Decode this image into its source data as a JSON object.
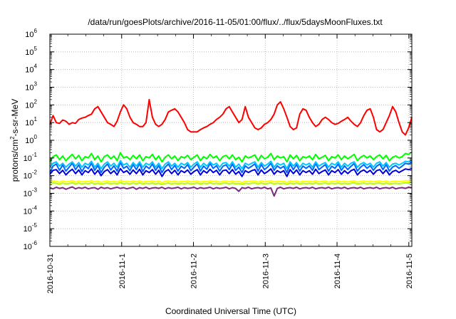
{
  "chart_data": {
    "type": "line",
    "title": "/data/run/goesPlots/archive/2016-11-05/01:00/flux/../flux/5daysMoonFluxes.txt",
    "xlabel": "Coordinated Universal Time (UTC)",
    "ylabel": {
      "base": "protons/cm",
      "sup": "2",
      "rest": "-s-sr-MeV"
    },
    "x_range": [
      "2016-10-31T00:00",
      "2016-11-05T01:00"
    ],
    "x_ticks": [
      "2016-10-31",
      "2016-11-1",
      "2016-11-2",
      "2016-11-3",
      "2016-11-4",
      "2016-11-5"
    ],
    "y_scale": "log",
    "y_range": [
      1e-06,
      1000000.0
    ],
    "y_ticks": [
      {
        "base": "10",
        "exp": "-6"
      },
      {
        "base": "10",
        "exp": "-5"
      },
      {
        "base": "10",
        "exp": "-4"
      },
      {
        "base": "10",
        "exp": "-3"
      },
      {
        "base": "10",
        "exp": "-2"
      },
      {
        "base": "10",
        "exp": "-1"
      },
      {
        "base": "10",
        "exp": "0"
      },
      {
        "base": "10",
        "exp": "1"
      },
      {
        "base": "10",
        "exp": "2"
      },
      {
        "base": "10",
        "exp": "3"
      },
      {
        "base": "10",
        "exp": "4"
      },
      {
        "base": "10",
        "exp": "5"
      },
      {
        "base": "10",
        "exp": "6"
      }
    ],
    "grid": true,
    "series": [
      {
        "color": "#ff0000",
        "values": [
          8,
          25,
          10,
          9,
          14,
          12,
          8,
          10,
          9,
          15,
          18,
          20,
          25,
          30,
          60,
          80,
          40,
          20,
          10,
          8,
          6,
          12,
          40,
          100,
          60,
          20,
          10,
          8,
          6,
          6,
          10,
          200,
          20,
          8,
          6,
          8,
          15,
          40,
          50,
          60,
          40,
          20,
          10,
          4,
          3,
          3,
          3,
          4,
          5,
          6,
          8,
          10,
          15,
          20,
          30,
          60,
          80,
          40,
          20,
          10,
          15,
          80,
          20,
          10,
          5,
          4,
          5,
          8,
          10,
          15,
          30,
          100,
          150,
          60,
          20,
          6,
          4,
          5,
          30,
          60,
          50,
          20,
          10,
          6,
          8,
          15,
          20,
          15,
          10,
          8,
          9,
          12,
          15,
          20,
          12,
          8,
          6,
          10,
          25,
          50,
          60,
          20,
          4,
          3,
          4,
          10,
          25,
          80,
          40,
          10,
          3,
          2,
          5,
          20
        ]
      },
      {
        "color": "#00ff00",
        "values": [
          0.06,
          0.12,
          0.15,
          0.08,
          0.13,
          0.07,
          0.11,
          0.16,
          0.09,
          0.14,
          0.07,
          0.12,
          0.1,
          0.18,
          0.08,
          0.13,
          0.06,
          0.12,
          0.15,
          0.09,
          0.13,
          0.07,
          0.2,
          0.1,
          0.12,
          0.08,
          0.14,
          0.09,
          0.15,
          0.07,
          0.12,
          0.1,
          0.16,
          0.08,
          0.13,
          0.06,
          0.11,
          0.15,
          0.09,
          0.13,
          0.07,
          0.12,
          0.1,
          0.14,
          0.08,
          0.11,
          0.15,
          0.07,
          0.12,
          0.09,
          0.16,
          0.1,
          0.13,
          0.07,
          0.12,
          0.14,
          0.09,
          0.15,
          0.08,
          0.11,
          0.06,
          0.13,
          0.1,
          0.12,
          0.15,
          0.07,
          0.14,
          0.09,
          0.11,
          0.18,
          0.08,
          0.13,
          0.1,
          0.12,
          0.06,
          0.15,
          0.09,
          0.14,
          0.07,
          0.12,
          0.1,
          0.13,
          0.08,
          0.16,
          0.09,
          0.11,
          0.14,
          0.07,
          0.12,
          0.1,
          0.15,
          0.08,
          0.13,
          0.09,
          0.12,
          0.16,
          0.07,
          0.11,
          0.14,
          0.1,
          0.13,
          0.08,
          0.12,
          0.15,
          0.09,
          0.14,
          0.07,
          0.11,
          0.13,
          0.1,
          0.12,
          0.18,
          0.16,
          0.22
        ]
      },
      {
        "color": "#00c8ff",
        "values": [
          0.03,
          0.05,
          0.06,
          0.035,
          0.05,
          0.03,
          0.045,
          0.06,
          0.035,
          0.055,
          0.03,
          0.05,
          0.04,
          0.065,
          0.03,
          0.05,
          0.025,
          0.045,
          0.06,
          0.035,
          0.05,
          0.03,
          0.07,
          0.04,
          0.05,
          0.03,
          0.055,
          0.035,
          0.06,
          0.03,
          0.05,
          0.04,
          0.06,
          0.03,
          0.05,
          0.025,
          0.045,
          0.06,
          0.035,
          0.05,
          0.03,
          0.05,
          0.04,
          0.055,
          0.03,
          0.045,
          0.06,
          0.03,
          0.05,
          0.035,
          0.06,
          0.04,
          0.05,
          0.03,
          0.05,
          0.055,
          0.035,
          0.06,
          0.03,
          0.045,
          0.025,
          0.05,
          0.04,
          0.05,
          0.06,
          0.03,
          0.055,
          0.035,
          0.045,
          0.065,
          0.03,
          0.05,
          0.04,
          0.05,
          0.025,
          0.06,
          0.035,
          0.055,
          0.03,
          0.05,
          0.04,
          0.05,
          0.03,
          0.06,
          0.035,
          0.045,
          0.055,
          0.03,
          0.05,
          0.04,
          0.06,
          0.03,
          0.05,
          0.035,
          0.05,
          0.06,
          0.03,
          0.045,
          0.055,
          0.04,
          0.05,
          0.03,
          0.05,
          0.06,
          0.035,
          0.055,
          0.03,
          0.045,
          0.05,
          0.04,
          0.05,
          0.065,
          0.06,
          0.07
        ]
      },
      {
        "color": "#0064ff",
        "values": [
          0.015,
          0.035,
          0.045,
          0.02,
          0.04,
          0.018,
          0.03,
          0.05,
          0.022,
          0.04,
          0.017,
          0.035,
          0.025,
          0.05,
          0.02,
          0.038,
          0.015,
          0.03,
          0.045,
          0.021,
          0.036,
          0.018,
          0.055,
          0.026,
          0.034,
          0.019,
          0.042,
          0.022,
          0.048,
          0.017,
          0.035,
          0.025,
          0.046,
          0.02,
          0.037,
          0.015,
          0.03,
          0.045,
          0.022,
          0.038,
          0.018,
          0.034,
          0.026,
          0.042,
          0.019,
          0.031,
          0.046,
          0.018,
          0.035,
          0.023,
          0.048,
          0.026,
          0.037,
          0.018,
          0.034,
          0.041,
          0.022,
          0.045,
          0.02,
          0.03,
          0.015,
          0.036,
          0.026,
          0.034,
          0.046,
          0.018,
          0.042,
          0.022,
          0.031,
          0.05,
          0.02,
          0.036,
          0.026,
          0.034,
          0.015,
          0.045,
          0.022,
          0.042,
          0.018,
          0.035,
          0.026,
          0.036,
          0.02,
          0.048,
          0.022,
          0.031,
          0.042,
          0.018,
          0.034,
          0.026,
          0.045,
          0.02,
          0.036,
          0.022,
          0.034,
          0.048,
          0.018,
          0.03,
          0.042,
          0.026,
          0.037,
          0.02,
          0.034,
          0.045,
          0.022,
          0.042,
          0.018,
          0.031,
          0.037,
          0.026,
          0.035,
          0.05,
          0.045,
          0.055
        ]
      },
      {
        "color": "#0000dc",
        "values": [
          0.012,
          0.02,
          0.022,
          0.013,
          0.02,
          0.011,
          0.017,
          0.023,
          0.013,
          0.021,
          0.011,
          0.019,
          0.015,
          0.024,
          0.012,
          0.02,
          0.01,
          0.017,
          0.022,
          0.013,
          0.019,
          0.011,
          0.025,
          0.015,
          0.019,
          0.012,
          0.021,
          0.013,
          0.023,
          0.011,
          0.019,
          0.015,
          0.022,
          0.012,
          0.02,
          0.009,
          0.017,
          0.022,
          0.013,
          0.02,
          0.011,
          0.019,
          0.015,
          0.021,
          0.012,
          0.017,
          0.022,
          0.011,
          0.019,
          0.014,
          0.023,
          0.015,
          0.02,
          0.011,
          0.019,
          0.021,
          0.013,
          0.022,
          0.012,
          0.017,
          0.009,
          0.019,
          0.015,
          0.019,
          0.022,
          0.011,
          0.021,
          0.013,
          0.017,
          0.024,
          0.012,
          0.019,
          0.015,
          0.019,
          0.009,
          0.022,
          0.013,
          0.021,
          0.011,
          0.019,
          0.015,
          0.019,
          0.012,
          0.023,
          0.013,
          0.017,
          0.021,
          0.011,
          0.019,
          0.015,
          0.022,
          0.012,
          0.019,
          0.013,
          0.019,
          0.023,
          0.011,
          0.017,
          0.021,
          0.015,
          0.02,
          0.012,
          0.019,
          0.022,
          0.013,
          0.021,
          0.011,
          0.017,
          0.02,
          0.015,
          0.019,
          0.024,
          0.022,
          0.025
        ]
      },
      {
        "color": "#ffff00",
        "values": [
          0.0045,
          0.005,
          0.0048,
          0.0042,
          0.005,
          0.0044,
          0.0047,
          0.0052,
          0.0043,
          0.005,
          0.0044,
          0.0048,
          0.0046,
          0.0052,
          0.0044,
          0.0049,
          0.0042,
          0.0047,
          0.005,
          0.0044,
          0.0048,
          0.0043,
          0.0053,
          0.0046,
          0.0048,
          0.0044,
          0.005,
          0.0044,
          0.0051,
          0.0043,
          0.0048,
          0.0046,
          0.005,
          0.0044,
          0.0049,
          0.0041,
          0.0047,
          0.005,
          0.0044,
          0.0049,
          0.0043,
          0.0048,
          0.0046,
          0.005,
          0.0044,
          0.0047,
          0.005,
          0.0043,
          0.0048,
          0.0045,
          0.0051,
          0.0046,
          0.0049,
          0.0043,
          0.0048,
          0.005,
          0.0044,
          0.005,
          0.0044,
          0.0047,
          0.0041,
          0.0048,
          0.0046,
          0.0048,
          0.005,
          0.0043,
          0.005,
          0.0044,
          0.0047,
          0.0052,
          0.0044,
          0.0048,
          0.0046,
          0.0048,
          0.0041,
          0.005,
          0.0044,
          0.005,
          0.0043,
          0.0048,
          0.0046,
          0.0048,
          0.0044,
          0.0051,
          0.0044,
          0.0047,
          0.005,
          0.0043,
          0.0048,
          0.0046,
          0.005,
          0.0044,
          0.0048,
          0.0044,
          0.0048,
          0.0051,
          0.0043,
          0.0047,
          0.005,
          0.0046,
          0.0049,
          0.0044,
          0.0048,
          0.005,
          0.0044,
          0.005,
          0.0043,
          0.0047,
          0.0049,
          0.0046,
          0.0048,
          0.0052,
          0.005,
          0.0053
        ]
      },
      {
        "color": "#b4ff00",
        "values": [
          0.0035,
          0.0038,
          0.0037,
          0.0033,
          0.0038,
          0.0034,
          0.0036,
          0.0039,
          0.0034,
          0.0038,
          0.0034,
          0.0037,
          0.0035,
          0.0039,
          0.0034,
          0.0037,
          0.0033,
          0.0036,
          0.0038,
          0.0034,
          0.0037,
          0.0034,
          0.004,
          0.0035,
          0.0037,
          0.0034,
          0.0038,
          0.0034,
          0.0039,
          0.0034,
          0.0037,
          0.0035,
          0.0038,
          0.0034,
          0.0037,
          0.0032,
          0.0036,
          0.0038,
          0.0034,
          0.0037,
          0.0034,
          0.0037,
          0.0035,
          0.0038,
          0.0034,
          0.0036,
          0.0038,
          0.0034,
          0.0037,
          0.0035,
          0.0039,
          0.0035,
          0.0037,
          0.0034,
          0.0037,
          0.0038,
          0.0034,
          0.0038,
          0.0034,
          0.0036,
          0.0032,
          0.0037,
          0.0035,
          0.0037,
          0.0038,
          0.0034,
          0.0038,
          0.0034,
          0.0036,
          0.0039,
          0.0034,
          0.0037,
          0.0035,
          0.0037,
          0.0032,
          0.0038,
          0.0034,
          0.0038,
          0.0034,
          0.0037,
          0.0035,
          0.0037,
          0.0034,
          0.0039,
          0.0034,
          0.0036,
          0.0038,
          0.0034,
          0.0037,
          0.0035,
          0.0038,
          0.0034,
          0.0037,
          0.0034,
          0.0037,
          0.0039,
          0.0034,
          0.0036,
          0.0038,
          0.0035,
          0.0037,
          0.0034,
          0.0037,
          0.0038,
          0.0034,
          0.0038,
          0.0034,
          0.0036,
          0.0037,
          0.0035,
          0.0037,
          0.0039,
          0.0038,
          0.004
        ]
      },
      {
        "color": "#7d2a7d",
        "values": [
          0.002,
          0.0018,
          0.0022,
          0.0019,
          0.0021,
          0.0017,
          0.002,
          0.0023,
          0.0018,
          0.0021,
          0.0019,
          0.0022,
          0.0018,
          0.002,
          0.0021,
          0.0017,
          0.0022,
          0.0019,
          0.0021,
          0.0018,
          0.002,
          0.0022,
          0.0019,
          0.0021,
          0.0018,
          0.002,
          0.0022,
          0.0017,
          0.0021,
          0.0019,
          0.0022,
          0.0018,
          0.002,
          0.0021,
          0.0019,
          0.0022,
          0.0018,
          0.0021,
          0.0019,
          0.002,
          0.0022,
          0.0018,
          0.0021,
          0.0019,
          0.002,
          0.0022,
          0.0018,
          0.0021,
          0.0019,
          0.002,
          0.0022,
          0.0018,
          0.0021,
          0.0019,
          0.002,
          0.0022,
          0.0018,
          0.0021,
          0.0019,
          0.0013,
          0.0021,
          0.0019,
          0.0022,
          0.0018,
          0.002,
          0.0021,
          0.0019,
          0.0022,
          0.0018,
          0.002,
          0.0007,
          0.0019,
          0.0022,
          0.0018,
          0.002,
          0.0021,
          0.0019,
          0.0022,
          0.0018,
          0.002,
          0.0021,
          0.0019,
          0.0022,
          0.0018,
          0.002,
          0.0021,
          0.0019,
          0.0022,
          0.0018,
          0.002,
          0.0021,
          0.0019,
          0.0022,
          0.0018,
          0.002,
          0.0021,
          0.0019,
          0.0022,
          0.0018,
          0.002,
          0.0021,
          0.0019,
          0.0022,
          0.0018,
          0.002,
          0.0021,
          0.0019,
          0.0022,
          0.0018,
          0.002,
          0.0021,
          0.0019,
          0.0022,
          0.0021
        ]
      }
    ]
  }
}
